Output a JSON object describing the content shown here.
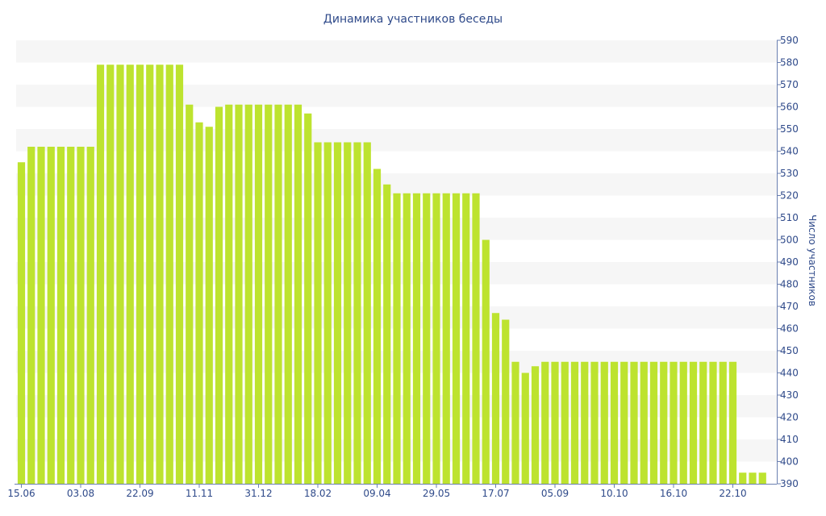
{
  "chart_data": {
    "type": "bar",
    "title": "Динамика участников беседы",
    "xlabel": "",
    "ylabel": "Число участников",
    "ylim": [
      390,
      590
    ],
    "yticks": [
      390,
      400,
      410,
      420,
      430,
      440,
      450,
      460,
      470,
      480,
      490,
      500,
      510,
      520,
      530,
      540,
      550,
      560,
      570,
      580,
      590
    ],
    "y_axis_side": "right",
    "grid": "alternating horizontal bands",
    "legend": "none",
    "x_tick_labels": [
      {
        "label": "15.06",
        "index": 0
      },
      {
        "label": "03.08",
        "index": 6
      },
      {
        "label": "22.09",
        "index": 12
      },
      {
        "label": "11.11",
        "index": 18
      },
      {
        "label": "31.12",
        "index": 24
      },
      {
        "label": "18.02",
        "index": 30
      },
      {
        "label": "09.04",
        "index": 36
      },
      {
        "label": "29.05",
        "index": 42
      },
      {
        "label": "17.07",
        "index": 48
      },
      {
        "label": "05.09",
        "index": 54
      },
      {
        "label": "10.10",
        "index": 60
      },
      {
        "label": "16.10",
        "index": 66
      },
      {
        "label": "22.10",
        "index": 72
      }
    ],
    "series": [
      {
        "values": [
          535,
          542,
          542,
          542,
          542,
          542,
          542,
          542,
          579,
          579,
          579,
          579,
          579,
          579,
          579,
          579,
          579,
          561,
          553,
          551,
          560,
          561,
          561,
          561,
          561,
          561,
          561,
          561,
          561,
          557,
          544,
          544,
          544,
          544,
          544,
          544,
          532,
          525,
          521,
          521,
          521,
          521,
          521,
          521,
          521,
          521,
          521,
          500,
          467,
          464,
          445,
          440,
          443,
          445,
          445,
          445,
          445,
          445,
          445,
          445,
          445,
          445,
          445,
          445,
          445,
          445,
          445,
          445,
          445,
          445,
          445,
          445,
          445,
          395,
          395,
          395
        ]
      }
    ],
    "colors": {
      "bar": "#bde32f",
      "band": "#f6f6f6",
      "text": "#2f4a8a",
      "axis": "#6a7fb0"
    }
  }
}
